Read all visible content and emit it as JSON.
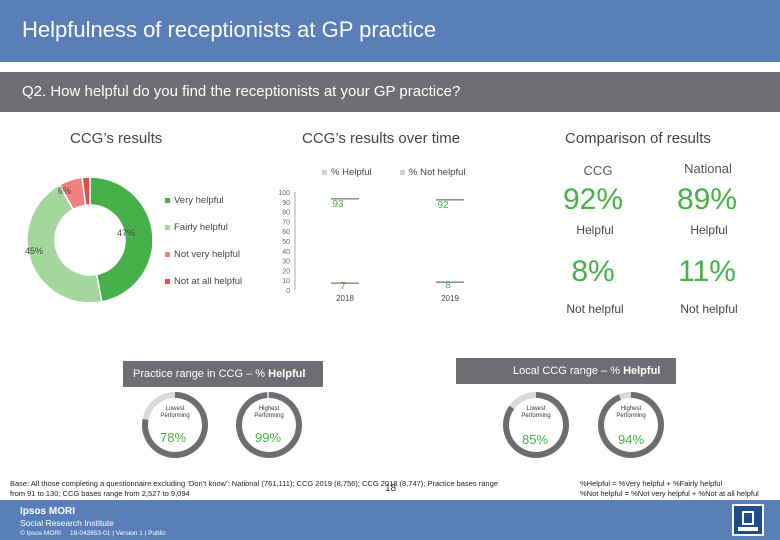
{
  "header": {
    "title": "Helpfulness of receptionists at GP practice"
  },
  "question": {
    "text": "Q2. How helpful do you find the receptionists at your GP practice?"
  },
  "colors": {
    "very_helpful": "#47b04a",
    "fairly_helpful": "#a3d79c",
    "not_very_helpful": "#f08080",
    "not_at_all_helpful": "#d9534f",
    "accent": "#5a7fb8",
    "grey": "#6d6e71"
  },
  "donut": {
    "section_title": "CCG’s results",
    "legend": [
      "Very helpful",
      "Fairly helpful",
      "Not very helpful",
      "Not at all helpful"
    ]
  },
  "chart_data": [
    {
      "type": "pie",
      "labels": [
        "Very helpful",
        "Fairly helpful",
        "Not very helpful",
        "Not at all helpful"
      ],
      "values": [
        47,
        45,
        6,
        2
      ],
      "data_labels": [
        "47%",
        "45%",
        "6%",
        ""
      ]
    },
    {
      "type": "line",
      "title": "CCG’s results over time",
      "categories": [
        "2018",
        "2019"
      ],
      "series": [
        {
          "name": "% Helpful",
          "values": [
            93,
            92
          ]
        },
        {
          "name": "% Not helpful",
          "values": [
            7,
            8
          ]
        }
      ],
      "ylim": [
        0,
        100
      ],
      "yticks": [
        0,
        10,
        20,
        30,
        40,
        50,
        60,
        70,
        80,
        90,
        100
      ],
      "ytick_labels": [
        "0",
        "10",
        "20",
        "30",
        "40",
        "50",
        "60",
        "70",
        "80",
        "90",
        "100"
      ]
    }
  ],
  "comparison": {
    "title": "Comparison of results",
    "ccg_label": "CCG",
    "national_label": "National",
    "ccg_helpful": "92%",
    "national_helpful": "89%",
    "helpful_label": "Helpful",
    "ccg_not_helpful": "8%",
    "national_not_helpful": "11%",
    "not_helpful_label": "Not helpful"
  },
  "practice_range": {
    "title_prefix": "Practice range in CCG – % ",
    "title_bold": "Helpful",
    "lowest_label": "Lowest Performing",
    "highest_label": "Highest Performing",
    "lowest_value": "78%",
    "highest_value": "99%",
    "lowest_fraction": 0.78,
    "highest_fraction": 0.99
  },
  "local_range": {
    "title_prefix": "Local CCG range – % ",
    "title_bold": "Helpful",
    "lowest_label": "Lowest Performing",
    "highest_label": "Highest Performing",
    "lowest_value": "85%",
    "highest_value": "94%",
    "lowest_fraction": 0.85,
    "highest_fraction": 0.94
  },
  "footer": {
    "base_line1": "Base: All those completing a questionnaire excluding ‘Don’t know’: National (761,111); CCG 2019 (8,756); CCG 2018 (8,747); Practice bases range",
    "base_line2": "from 91 to 130; CCG bases range from 2,527 to 9,094",
    "def_line1": "%Helpful = %Very helpful + %Fairly helpful",
    "def_line2": "%Not helpful = %Not very helpful + %Not at all helpful",
    "page_number": "18",
    "brand_line1": "Ipsos MORI",
    "brand_line2": "Social Research Institute",
    "copyright": "© Ipsos MORI     18-042653-01 | Version 1 | Public"
  }
}
